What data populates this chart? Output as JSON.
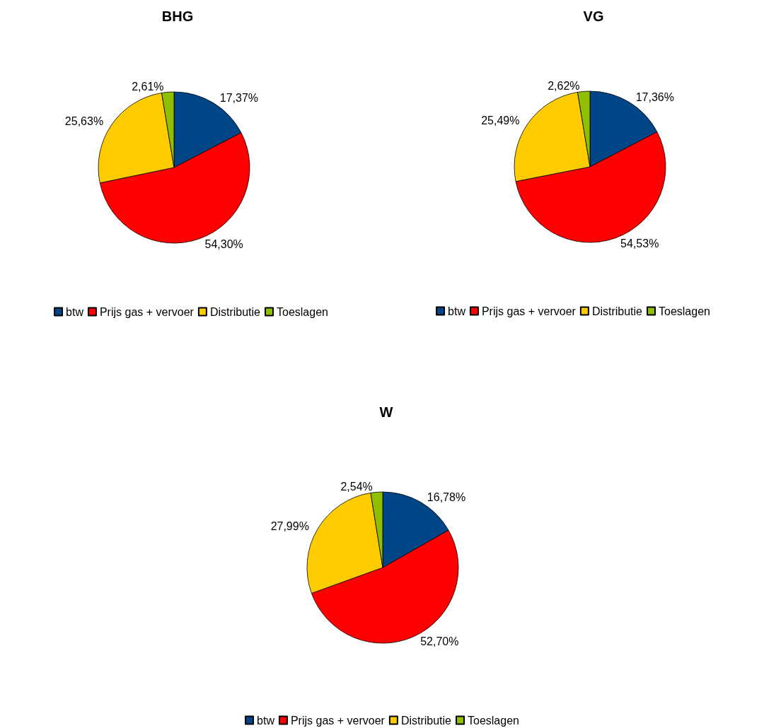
{
  "chart_data": [
    {
      "type": "pie",
      "title": "BHG",
      "categories": [
        "btw",
        "Prijs gas + vervoer",
        "Distributie",
        "Toeslagen"
      ],
      "values": [
        17.37,
        54.3,
        25.63,
        2.61
      ],
      "value_labels": [
        "17,37%",
        "54,30%",
        "25,63%",
        "2,61%"
      ],
      "colors": [
        "#004586",
        "#ff0000",
        "#ffcc00",
        "#8fbf00"
      ],
      "legend": "bottom"
    },
    {
      "type": "pie",
      "title": "VG",
      "categories": [
        "btw",
        "Prijs gas + vervoer",
        "Distributie",
        "Toeslagen"
      ],
      "values": [
        17.36,
        54.53,
        25.49,
        2.62
      ],
      "value_labels": [
        "17,36%",
        "54,53%",
        "25,49%",
        "2,62%"
      ],
      "colors": [
        "#004586",
        "#ff0000",
        "#ffcc00",
        "#8fbf00"
      ],
      "legend": "bottom"
    },
    {
      "type": "pie",
      "title": "W",
      "categories": [
        "btw",
        "Prijs gas + vervoer",
        "Distributie",
        "Toeslagen"
      ],
      "values": [
        16.78,
        52.7,
        27.99,
        2.54
      ],
      "value_labels": [
        "16,78%",
        "52,70%",
        "27,99%",
        "2,54%"
      ],
      "colors": [
        "#004586",
        "#ff0000",
        "#ffcc00",
        "#8fbf00"
      ],
      "legend": "bottom"
    }
  ]
}
